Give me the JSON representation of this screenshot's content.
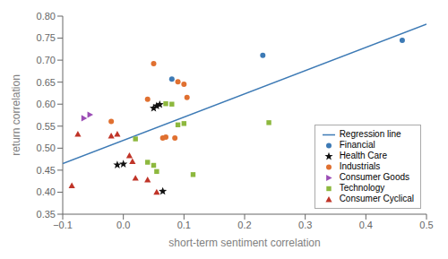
{
  "chart_data": {
    "type": "scatter",
    "xlabel": "short-term sentiment correlation",
    "ylabel": "return correlation",
    "xlim": [
      -0.1,
      0.5
    ],
    "ylim": [
      0.35,
      0.8
    ],
    "xticks": [
      {
        "value": -0.1,
        "label": "−0.1"
      },
      {
        "value": 0.0,
        "label": "0.0"
      },
      0.1,
      0.2,
      0.3,
      0.4,
      0.5
    ],
    "yticks": [
      0.35,
      {
        "value": 0.4,
        "label": "0.40"
      },
      0.45,
      {
        "value": 0.5,
        "label": "0.50"
      },
      0.55,
      {
        "value": 0.6,
        "label": "0.60"
      },
      0.65,
      {
        "value": 0.7,
        "label": "0.70"
      },
      0.75,
      {
        "value": 0.8,
        "label": "0.80"
      }
    ],
    "grid": false,
    "legend": "lower right",
    "series": [
      {
        "name": "Regression line",
        "type": "line",
        "color": "#3d7ab5",
        "x": [
          -0.1,
          0.5
        ],
        "values": [
          0.465,
          0.782
        ]
      },
      {
        "name": "Financial",
        "color": "#3d7ab5",
        "marker": "circle",
        "x": [
          0.08,
          0.23,
          0.46
        ],
        "values": [
          0.657,
          0.711,
          0.745
        ]
      },
      {
        "name": "Health Care",
        "color": "#111111",
        "marker": "star",
        "x": [
          -0.01,
          0.0,
          0.05,
          0.055,
          0.06,
          0.065
        ],
        "values": [
          0.462,
          0.464,
          0.591,
          0.596,
          0.599,
          0.402
        ]
      },
      {
        "name": "Industrials",
        "color": "#e07030",
        "marker": "circle",
        "x": [
          -0.02,
          0.04,
          0.05,
          0.065,
          0.07,
          0.085,
          0.09,
          0.1,
          0.105
        ],
        "values": [
          0.561,
          0.611,
          0.692,
          0.523,
          0.525,
          0.523,
          0.651,
          0.645,
          0.615
        ]
      },
      {
        "name": "Consumer Goods",
        "color": "#9b4db5",
        "marker": "triangle_right",
        "x": [
          -0.065,
          -0.055
        ],
        "values": [
          0.568,
          0.576
        ]
      },
      {
        "name": "Technology",
        "color": "#8db83e",
        "marker": "square",
        "x": [
          0.02,
          0.04,
          0.05,
          0.055,
          0.07,
          0.08,
          0.09,
          0.1,
          0.115,
          0.24
        ],
        "values": [
          0.521,
          0.468,
          0.461,
          0.447,
          0.601,
          0.6,
          0.553,
          0.556,
          0.44,
          0.558
        ]
      },
      {
        "name": "Consumer Cyclical",
        "color": "#c03428",
        "marker": "triangle",
        "x": [
          -0.085,
          -0.075,
          -0.02,
          -0.01,
          0.01,
          0.015,
          0.02,
          0.04,
          0.055
        ],
        "values": [
          0.415,
          0.532,
          0.528,
          0.532,
          0.483,
          0.47,
          0.432,
          0.428,
          0.4
        ]
      }
    ]
  }
}
